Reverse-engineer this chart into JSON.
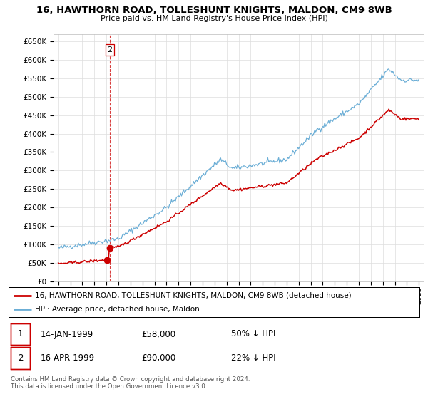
{
  "title": "16, HAWTHORN ROAD, TOLLESHUNT KNIGHTS, MALDON, CM9 8WB",
  "subtitle": "Price paid vs. HM Land Registry's House Price Index (HPI)",
  "legend_line1": "16, HAWTHORN ROAD, TOLLESHUNT KNIGHTS, MALDON, CM9 8WB (detached house)",
  "legend_line2": "HPI: Average price, detached house, Maldon",
  "footer": "Contains HM Land Registry data © Crown copyright and database right 2024.\nThis data is licensed under the Open Government Licence v3.0.",
  "transaction1_label": "1",
  "transaction1_date": "14-JAN-1999",
  "transaction1_price": "£58,000",
  "transaction1_hpi": "50% ↓ HPI",
  "transaction2_label": "2",
  "transaction2_date": "16-APR-1999",
  "transaction2_price": "£90,000",
  "transaction2_hpi": "22% ↓ HPI",
  "marker1_x": 1999.04,
  "marker1_y": 58000,
  "marker2_x": 1999.29,
  "marker2_y": 90000,
  "hpi_color": "#6baed6",
  "price_color": "#cc0000",
  "marker_color": "#cc0000",
  "dashed_line_color": "#cc0000",
  "ylim": [
    0,
    670000
  ],
  "ytick_step": 50000,
  "background_color": "#ffffff",
  "grid_color": "#dddddd",
  "xlim_left": 1994.6,
  "xlim_right": 2025.4
}
